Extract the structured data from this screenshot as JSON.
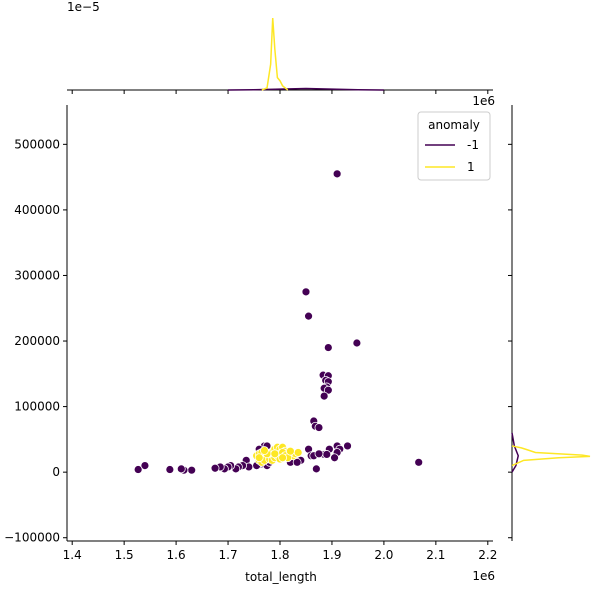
{
  "chart_data": {
    "type": "scatter",
    "subtype": "jointplot",
    "title": "",
    "xlabel": "total_length",
    "ylabel": "",
    "x_offset_label": "1e6",
    "y_offset_label": "1e6",
    "top_marginal_offset_label": "1e−5",
    "xlim": [
      1.39,
      2.21
    ],
    "ylim": [
      -105000,
      560000
    ],
    "x_ticks": [
      1.4,
      1.5,
      1.6,
      1.7,
      1.8,
      1.9,
      2.0,
      2.1,
      2.2
    ],
    "y_ticks": [
      -100000,
      0,
      100000,
      200000,
      300000,
      400000,
      500000
    ],
    "grid": false,
    "legend": {
      "title": "anomaly",
      "placement": "top-right",
      "entries": [
        {
          "label": "-1",
          "color": "#440154"
        },
        {
          "label": "1",
          "color": "#fde725"
        }
      ]
    },
    "series": [
      {
        "name": "-1",
        "color": "#440154",
        "points": [
          [
            1.91,
            455000
          ],
          [
            1.85,
            275000
          ],
          [
            1.855,
            238000
          ],
          [
            1.948,
            197000
          ],
          [
            1.893,
            190000
          ],
          [
            1.883,
            148000
          ],
          [
            1.893,
            147000
          ],
          [
            1.888,
            140000
          ],
          [
            1.893,
            138000
          ],
          [
            1.89,
            130000
          ],
          [
            1.885,
            128000
          ],
          [
            1.893,
            125000
          ],
          [
            1.885,
            116000
          ],
          [
            1.865,
            78000
          ],
          [
            1.868,
            70000
          ],
          [
            1.875,
            68000
          ],
          [
            1.93,
            40000
          ],
          [
            1.91,
            40000
          ],
          [
            1.915,
            35000
          ],
          [
            1.895,
            35000
          ],
          [
            1.855,
            35000
          ],
          [
            1.91,
            30000
          ],
          [
            1.885,
            27000
          ],
          [
            1.89,
            27000
          ],
          [
            1.86,
            25000
          ],
          [
            1.865,
            25000
          ],
          [
            1.875,
            28000
          ],
          [
            1.905,
            22000
          ],
          [
            1.83,
            20000
          ],
          [
            1.84,
            18000
          ],
          [
            1.82,
            15000
          ],
          [
            1.833,
            15000
          ],
          [
            2.067,
            15000
          ],
          [
            1.77,
            40000
          ],
          [
            1.775,
            40000
          ],
          [
            1.76,
            35000
          ],
          [
            1.765,
            12000
          ],
          [
            1.755,
            10000
          ],
          [
            1.77,
            12000
          ],
          [
            1.775,
            10000
          ],
          [
            1.78,
            15000
          ],
          [
            1.735,
            18000
          ],
          [
            1.74,
            8000
          ],
          [
            1.728,
            10000
          ],
          [
            1.72,
            8000
          ],
          [
            1.715,
            5000
          ],
          [
            1.705,
            10000
          ],
          [
            1.7,
            8000
          ],
          [
            1.693,
            5000
          ],
          [
            1.685,
            8000
          ],
          [
            1.675,
            6000
          ],
          [
            1.63,
            3000
          ],
          [
            1.615,
            3000
          ],
          [
            1.61,
            5000
          ],
          [
            1.588,
            4000
          ],
          [
            1.54,
            10000
          ],
          [
            1.527,
            4000
          ],
          [
            1.87,
            5000
          ]
        ]
      },
      {
        "name": "1",
        "color": "#fde725",
        "points": [
          [
            1.755,
            25000
          ],
          [
            1.76,
            28000
          ],
          [
            1.765,
            30000
          ],
          [
            1.77,
            20000
          ],
          [
            1.775,
            22000
          ],
          [
            1.78,
            25000
          ],
          [
            1.785,
            30000
          ],
          [
            1.79,
            35000
          ],
          [
            1.795,
            38000
          ],
          [
            1.8,
            35000
          ],
          [
            1.805,
            38000
          ],
          [
            1.81,
            32000
          ],
          [
            1.815,
            30000
          ],
          [
            1.82,
            28000
          ],
          [
            1.825,
            25000
          ],
          [
            1.83,
            28000
          ],
          [
            1.835,
            30000
          ],
          [
            1.76,
            18000
          ],
          [
            1.765,
            15000
          ],
          [
            1.77,
            18000
          ],
          [
            1.78,
            20000
          ],
          [
            1.785,
            18000
          ],
          [
            1.79,
            22000
          ],
          [
            1.795,
            25000
          ],
          [
            1.8,
            28000
          ],
          [
            1.805,
            30000
          ],
          [
            1.81,
            25000
          ],
          [
            1.815,
            22000
          ],
          [
            1.775,
            28000
          ],
          [
            1.77,
            33000
          ],
          [
            1.8,
            20000
          ],
          [
            1.79,
            28000
          ],
          [
            1.805,
            22000
          ],
          [
            1.82,
            32000
          ],
          [
            1.76,
            22000
          ]
        ]
      }
    ],
    "marginal_top": {
      "series": [
        {
          "name": "-1",
          "color": "#440154",
          "points": [
            [
              1.7,
              0
            ],
            [
              1.75,
              0.03
            ],
            [
              1.8,
              0.08
            ],
            [
              1.85,
              0.15
            ],
            [
              1.9,
              0.08
            ],
            [
              1.95,
              0.02
            ],
            [
              2.0,
              0
            ]
          ]
        },
        {
          "name": "1",
          "color": "#fde725",
          "points": [
            [
              1.765,
              0
            ],
            [
              1.775,
              0.2
            ],
            [
              1.782,
              2.5
            ],
            [
              1.786,
              7.0
            ],
            [
              1.79,
              4.0
            ],
            [
              1.795,
              1.2
            ],
            [
              1.8,
              0.9
            ],
            [
              1.805,
              0.4
            ],
            [
              1.815,
              0
            ]
          ]
        }
      ]
    },
    "marginal_right": {
      "series": [
        {
          "name": "-1",
          "color": "#440154",
          "points": [
            [
              0,
              0
            ],
            [
              10000,
              0.05
            ],
            [
              25000,
              0.08
            ],
            [
              40000,
              0.03
            ],
            [
              60000,
              0
            ]
          ]
        },
        {
          "name": "1",
          "color": "#fde725",
          "points": [
            [
              10000,
              0
            ],
            [
              18000,
              0.15
            ],
            [
              22000,
              0.6
            ],
            [
              24000,
              1.0
            ],
            [
              26000,
              0.9
            ],
            [
              30000,
              0.3
            ],
            [
              34000,
              0.2
            ],
            [
              37000,
              0.12
            ],
            [
              40000,
              0
            ]
          ]
        }
      ]
    }
  }
}
